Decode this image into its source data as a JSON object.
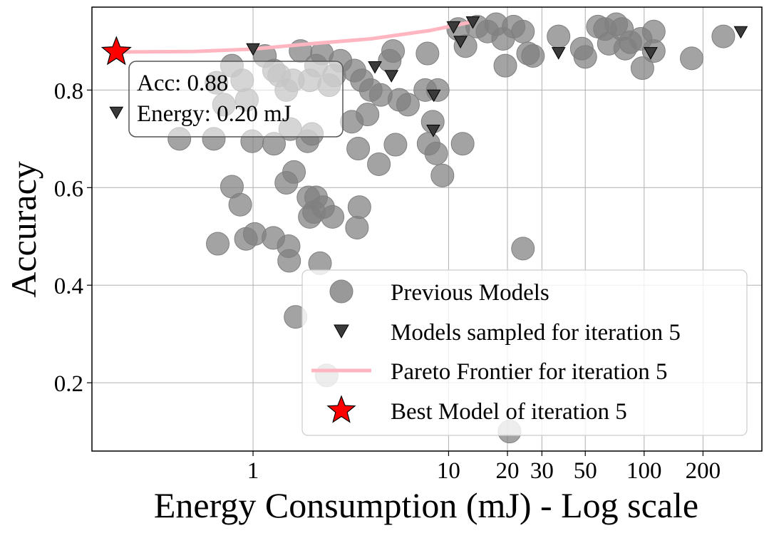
{
  "chart_data": {
    "type": "scatter",
    "title": "",
    "xlabel": "Energy Consumption (mJ) - Log scale",
    "ylabel": "Accuracy",
    "xscale": "log",
    "xlim": [
      0.15,
      400
    ],
    "ylim": [
      0.06,
      0.97
    ],
    "grid": true,
    "legend_position": "bottom-right",
    "xticks": [
      {
        "value": 1,
        "label": "1"
      },
      {
        "value": 10,
        "label": "10"
      },
      {
        "value": 20,
        "label": "20"
      },
      {
        "value": 30,
        "label": "30"
      },
      {
        "value": 50,
        "label": "50"
      },
      {
        "value": 100,
        "label": "100"
      },
      {
        "value": 200,
        "label": "200"
      }
    ],
    "yticks": [
      {
        "value": 0.2,
        "label": "0.2"
      },
      {
        "value": 0.4,
        "label": "0.4"
      },
      {
        "value": 0.6,
        "label": "0.6"
      },
      {
        "value": 0.8,
        "label": "0.8"
      }
    ],
    "colors": {
      "previous": "#808080",
      "sampled": "#3a3a3a",
      "pareto": "#ffb6c1",
      "best": "#ff0000",
      "axis": "#000000",
      "grid": "#b0b0b0"
    },
    "series": [
      {
        "name": "Previous Models",
        "marker": "circle",
        "points": [
          [
            0.65,
            0.815
          ],
          [
            0.71,
            0.77
          ],
          [
            0.78,
            0.85
          ],
          [
            0.88,
            0.82
          ],
          [
            0.93,
            0.78
          ],
          [
            1.15,
            0.87
          ],
          [
            1.28,
            0.84
          ],
          [
            1.36,
            0.83
          ],
          [
            1.48,
            0.8
          ],
          [
            1.6,
            0.82
          ],
          [
            1.75,
            0.88
          ],
          [
            1.95,
            0.82
          ],
          [
            2.1,
            0.85
          ],
          [
            2.25,
            0.875
          ],
          [
            2.45,
            0.81
          ],
          [
            2.6,
            0.83
          ],
          [
            2.8,
            0.86
          ],
          [
            3.3,
            0.84
          ],
          [
            3.6,
            0.82
          ],
          [
            4.0,
            0.8
          ],
          [
            4.5,
            0.79
          ],
          [
            5.0,
            0.86
          ],
          [
            5.6,
            0.78
          ],
          [
            6.2,
            0.77
          ],
          [
            7.6,
            0.8
          ],
          [
            8.8,
            0.8
          ],
          [
            5.2,
            0.88
          ],
          [
            7.8,
            0.875
          ],
          [
            0.42,
            0.7
          ],
          [
            0.63,
            0.7
          ],
          [
            0.99,
            0.695
          ],
          [
            1.28,
            0.69
          ],
          [
            1.55,
            0.72
          ],
          [
            1.9,
            0.695
          ],
          [
            2.0,
            0.71
          ],
          [
            3.2,
            0.735
          ],
          [
            3.45,
            0.68
          ],
          [
            3.85,
            0.75
          ],
          [
            4.4,
            0.648
          ],
          [
            5.35,
            0.688
          ],
          [
            7.9,
            0.69
          ],
          [
            8.3,
            0.735
          ],
          [
            8.65,
            0.67
          ],
          [
            9.3,
            0.625
          ],
          [
            11.8,
            0.69
          ],
          [
            0.78,
            0.602
          ],
          [
            0.86,
            0.565
          ],
          [
            0.66,
            0.485
          ],
          [
            0.92,
            0.495
          ],
          [
            1.02,
            0.505
          ],
          [
            1.27,
            0.497
          ],
          [
            1.52,
            0.48
          ],
          [
            1.53,
            0.45
          ],
          [
            1.62,
            0.632
          ],
          [
            1.48,
            0.61
          ],
          [
            1.92,
            0.58
          ],
          [
            2.1,
            0.58
          ],
          [
            1.95,
            0.54
          ],
          [
            2.05,
            0.55
          ],
          [
            2.28,
            0.56
          ],
          [
            2.55,
            0.54
          ],
          [
            2.2,
            0.445
          ],
          [
            3.5,
            0.56
          ],
          [
            3.4,
            0.518
          ],
          [
            1.65,
            0.335
          ],
          [
            2.38,
            0.215
          ],
          [
            20.5,
            0.1
          ],
          [
            24.0,
            0.475
          ],
          [
            11.2,
            0.925
          ],
          [
            12.2,
            0.89
          ],
          [
            14.0,
            0.93
          ],
          [
            15.8,
            0.92
          ],
          [
            17.5,
            0.935
          ],
          [
            19.0,
            0.905
          ],
          [
            21.5,
            0.93
          ],
          [
            24.0,
            0.92
          ],
          [
            25.5,
            0.875
          ],
          [
            27.0,
            0.87
          ],
          [
            19.5,
            0.85
          ],
          [
            36.5,
            0.91
          ],
          [
            48.0,
            0.885
          ],
          [
            50.0,
            0.868
          ],
          [
            58.0,
            0.93
          ],
          [
            63.0,
            0.925
          ],
          [
            66.0,
            0.895
          ],
          [
            72.0,
            0.935
          ],
          [
            77.0,
            0.925
          ],
          [
            80.0,
            0.885
          ],
          [
            85.0,
            0.898
          ],
          [
            96.0,
            0.905
          ],
          [
            98.0,
            0.845
          ],
          [
            112.0,
            0.92
          ],
          [
            112.0,
            0.88
          ],
          [
            175.0,
            0.865
          ],
          [
            254.0,
            0.91
          ]
        ]
      },
      {
        "name": "Models sampled for iteration 5",
        "marker": "triangle-down",
        "points": [
          [
            0.2,
            0.755
          ],
          [
            1.0,
            0.885
          ],
          [
            4.2,
            0.848
          ],
          [
            5.1,
            0.83
          ],
          [
            8.4,
            0.79
          ],
          [
            8.35,
            0.718
          ],
          [
            10.6,
            0.93
          ],
          [
            11.5,
            0.9
          ],
          [
            13.3,
            0.94
          ],
          [
            36.5,
            0.877
          ],
          [
            108.0,
            0.877
          ],
          [
            312.0,
            0.92
          ]
        ]
      },
      {
        "name": "Pareto Frontier for iteration 5",
        "marker": "line",
        "points": [
          [
            0.2,
            0.878
          ],
          [
            0.5,
            0.879
          ],
          [
            1.0,
            0.884
          ],
          [
            2.0,
            0.895
          ],
          [
            4.0,
            0.905
          ],
          [
            8.0,
            0.922
          ],
          [
            13.3,
            0.94
          ]
        ]
      },
      {
        "name": "Best Model of iteration 5",
        "marker": "star",
        "points": [
          [
            0.2,
            0.878
          ]
        ]
      }
    ],
    "annotation": {
      "lines": [
        "Acc: 0.88",
        "Energy: 0.20 mJ"
      ],
      "x": 0.2,
      "y": 0.878
    }
  }
}
